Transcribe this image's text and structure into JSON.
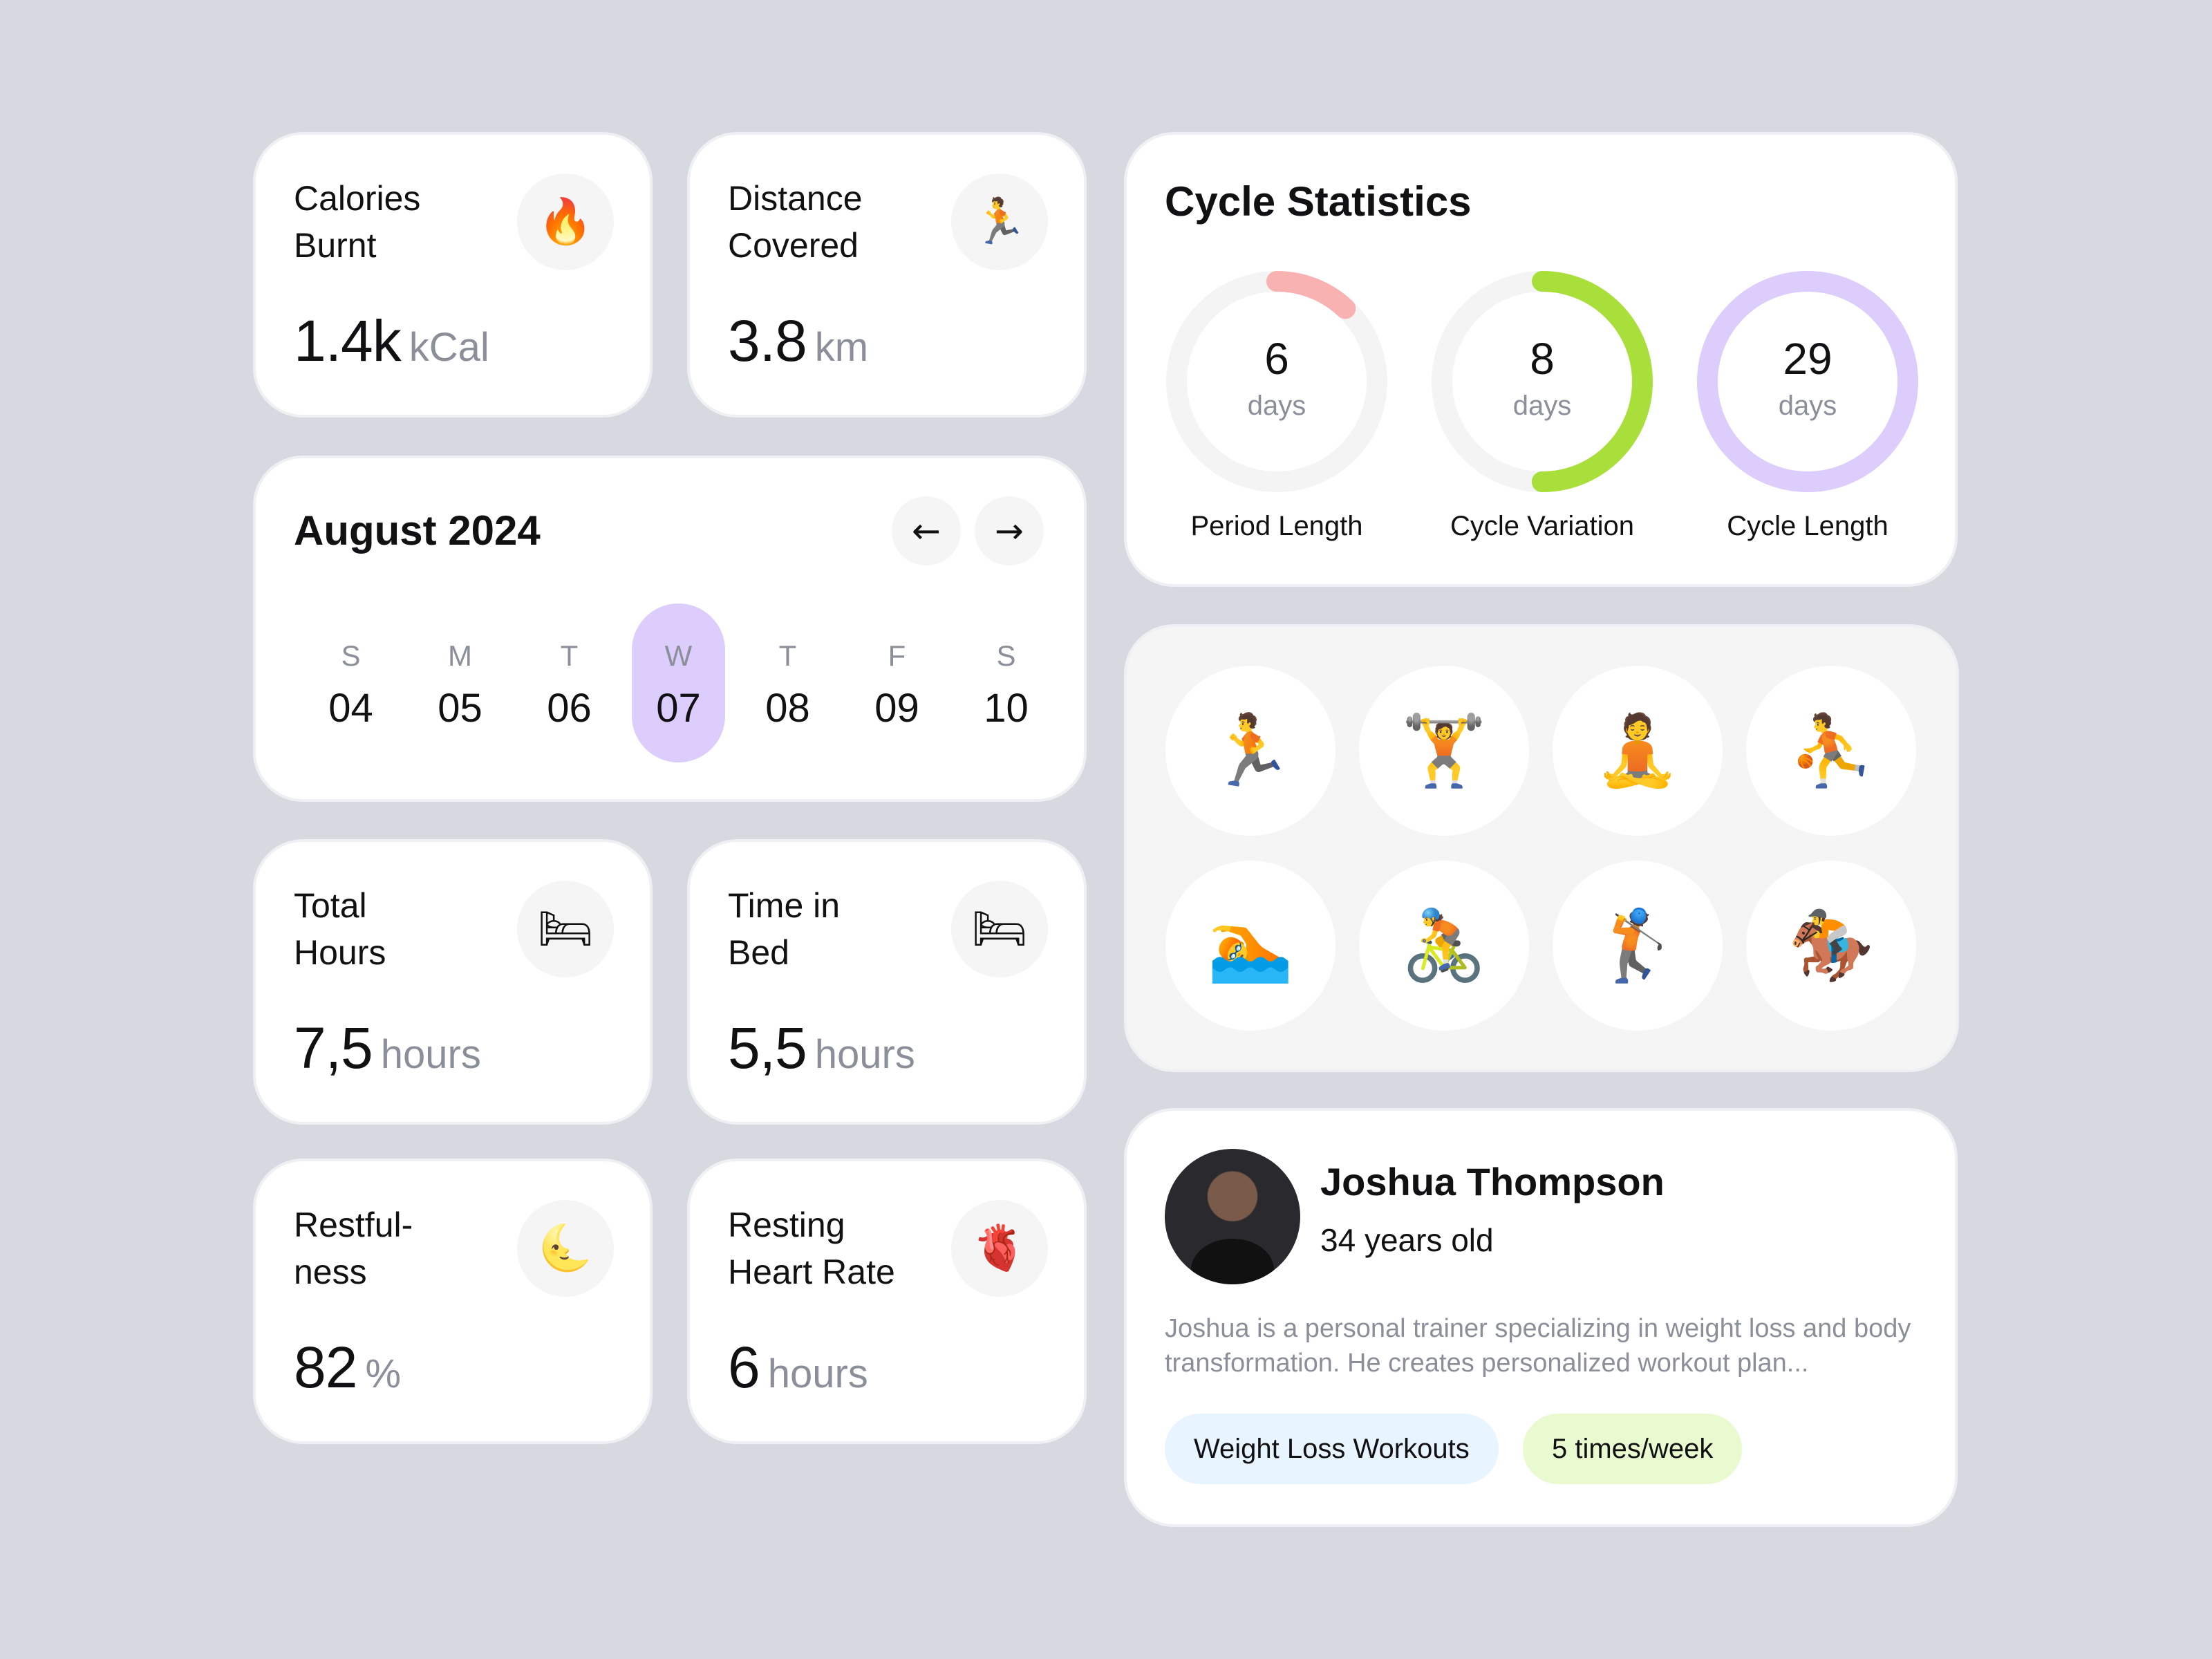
{
  "metrics": {
    "calories": {
      "label": "Calories\nBurnt",
      "value": "1.4k",
      "unit": "kCal",
      "icon": "🔥"
    },
    "distance": {
      "label": "Distance\nCovered",
      "value": "3.8",
      "unit": "km",
      "icon": "🏃"
    },
    "total_hours": {
      "label": "Total\nHours",
      "value": "7,5",
      "unit": "hours",
      "icon": "🛏"
    },
    "time_in_bed": {
      "label": "Time in\nBed",
      "value": "5,5",
      "unit": "hours",
      "icon": "🛏"
    },
    "restfulness": {
      "label": "Restful-\nness",
      "value": "82",
      "unit": "%",
      "icon": "🌜"
    },
    "resting_hr": {
      "label": "Resting\nHeart Rate",
      "value": "6",
      "unit": "hours",
      "icon": "🫀"
    }
  },
  "calendar": {
    "title": "August 2024",
    "prev_icon": "←",
    "next_icon": "→",
    "days": [
      {
        "dow": "S",
        "num": "04",
        "selected": false
      },
      {
        "dow": "M",
        "num": "05",
        "selected": false
      },
      {
        "dow": "T",
        "num": "06",
        "selected": false
      },
      {
        "dow": "W",
        "num": "07",
        "selected": true
      },
      {
        "dow": "T",
        "num": "08",
        "selected": false
      },
      {
        "dow": "F",
        "num": "09",
        "selected": false
      },
      {
        "dow": "S",
        "num": "10",
        "selected": false
      }
    ]
  },
  "cycle": {
    "title": "Cycle Statistics",
    "stats": [
      {
        "value": "6",
        "unit": "days",
        "label": "Period Length",
        "color": "#f9b2b2",
        "progress": 0.12
      },
      {
        "value": "8",
        "unit": "days",
        "label": "Cycle Variation",
        "color": "#a8df3a",
        "progress": 0.5
      },
      {
        "value": "29",
        "unit": "days",
        "label": "Cycle Length",
        "color": "#dccdfc",
        "progress": 1.0
      }
    ]
  },
  "activities": [
    {
      "name": "running",
      "icon": "🏃"
    },
    {
      "name": "weightlifting",
      "icon": "🏋"
    },
    {
      "name": "yoga",
      "icon": "🧘"
    },
    {
      "name": "basketball",
      "icon": "⛹"
    },
    {
      "name": "swimming",
      "icon": "🏊"
    },
    {
      "name": "cycling",
      "icon": "🚴"
    },
    {
      "name": "golf",
      "icon": "🏌"
    },
    {
      "name": "horse-riding",
      "icon": "🏇"
    }
  ],
  "profile": {
    "name": "Joshua Thompson",
    "age": "34 years old",
    "description": "Joshua is a personal trainer specializing in weight loss and body transformation. He creates personalized workout plan...",
    "tags": [
      {
        "label": "Weight Loss Workouts",
        "color": "#e8f4ff"
      },
      {
        "label": "5 times/week",
        "color": "#eafad0"
      }
    ]
  }
}
